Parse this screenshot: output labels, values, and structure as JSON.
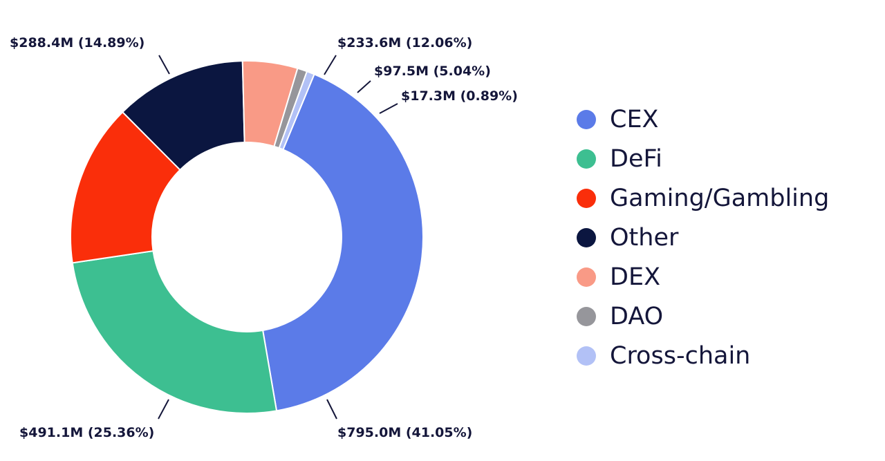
{
  "chart_data": {
    "type": "pie",
    "subtype": "donut",
    "title": "",
    "legend_position": "right",
    "slices": [
      {
        "name": "CEX",
        "value": 795.0,
        "percent": 41.05,
        "label": "$795.0M (41.05%)",
        "color": "#5b7be8"
      },
      {
        "name": "DeFi",
        "value": 491.1,
        "percent": 25.36,
        "label": "$491.1M (25.36%)",
        "color": "#3dbf91"
      },
      {
        "name": "Gaming/Gambling",
        "value": 288.4,
        "percent": 14.89,
        "label": "$288.4M (14.89%)",
        "color": "#fa2e0a"
      },
      {
        "name": "Other",
        "value": 233.6,
        "percent": 12.06,
        "label": "$233.6M (12.06%)",
        "color": "#0b1640"
      },
      {
        "name": "DEX",
        "value": 97.5,
        "percent": 5.04,
        "label": "$97.5M (5.04%)",
        "color": "#f99a86"
      },
      {
        "name": "DAO",
        "value": 17.3,
        "percent": 0.89,
        "label": "$17.3M (0.89%)",
        "color": "#96969b"
      },
      {
        "name": "Cross-chain",
        "value": 14.0,
        "percent": 0.71,
        "label": "",
        "color": "#b2c1f6"
      }
    ]
  }
}
